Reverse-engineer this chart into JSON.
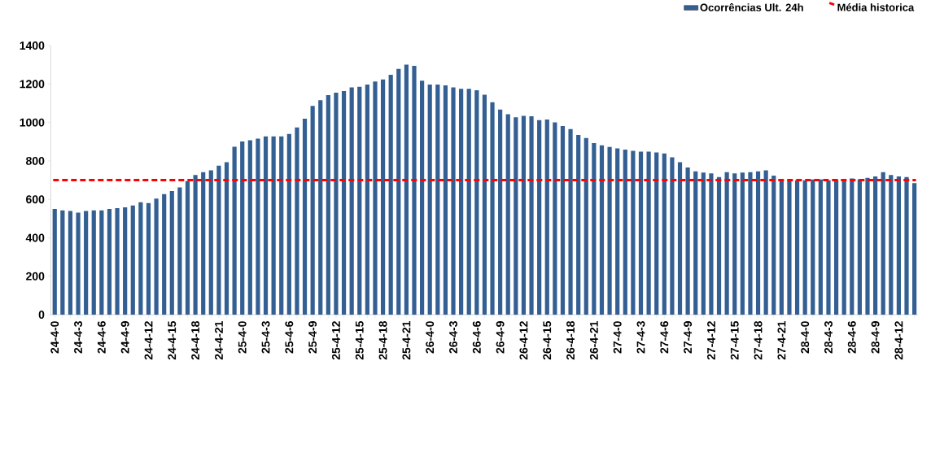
{
  "chart_data": {
    "type": "bar",
    "categories": [
      "24-4-0",
      null,
      null,
      "24-4-3",
      null,
      null,
      "24-4-6",
      null,
      null,
      "24-4-9",
      null,
      null,
      "24-4-12",
      null,
      null,
      "24-4-15",
      null,
      null,
      "24-4-18",
      null,
      null,
      "24-4-21",
      null,
      null,
      "25-4-0",
      null,
      null,
      "25-4-3",
      null,
      null,
      "25-4-6",
      null,
      null,
      "25-4-9",
      null,
      null,
      "25-4-12",
      null,
      null,
      "25-4-15",
      null,
      null,
      "25-4-18",
      null,
      null,
      "25-4-21",
      null,
      null,
      "26-4-0",
      null,
      null,
      "26-4-3",
      null,
      null,
      "26-4-6",
      null,
      null,
      "26-4-9",
      null,
      null,
      "26-4-12",
      null,
      null,
      "26-4-15",
      null,
      null,
      "26-4-18",
      null,
      null,
      "26-4-21",
      null,
      null,
      "27-4-0",
      null,
      null,
      "27-4-3",
      null,
      null,
      "27-4-6",
      null,
      null,
      "27-4-9",
      null,
      null,
      "27-4-12",
      null,
      null,
      "27-4-15",
      null,
      null,
      "27-4-18",
      null,
      null,
      "27-4-21",
      null,
      null,
      "28-4-0",
      null,
      null,
      "28-4-3",
      null,
      null,
      "28-4-6",
      null,
      null,
      "28-4-9",
      null,
      null,
      "28-4-12",
      null,
      null
    ],
    "series": [
      {
        "name": "Ocorrências Ult. 24h",
        "color": "#335f93",
        "values": [
          550,
          543,
          539,
          531,
          539,
          543,
          543,
          550,
          554,
          559,
          568,
          585,
          581,
          604,
          627,
          643,
          662,
          695,
          727,
          742,
          751,
          775,
          793,
          874,
          901,
          908,
          916,
          928,
          928,
          928,
          940,
          974,
          1020,
          1086,
          1116,
          1142,
          1155,
          1163,
          1182,
          1186,
          1197,
          1213,
          1224,
          1248,
          1279,
          1301,
          1294,
          1217,
          1197,
          1197,
          1193,
          1182,
          1175,
          1175,
          1168,
          1144,
          1105,
          1067,
          1043,
          1027,
          1034,
          1032,
          1012,
          1015,
          1001,
          981,
          966,
          935,
          919,
          893,
          881,
          873,
          865,
          859,
          852,
          848,
          848,
          844,
          839,
          819,
          793,
          766,
          746,
          739,
          735,
          716,
          742,
          735,
          739,
          742,
          746,
          751,
          723,
          699,
          703,
          699,
          699,
          703,
          703,
          699,
          703,
          703,
          709,
          703,
          712,
          719,
          742,
          727,
          719,
          716,
          684
        ]
      }
    ],
    "ref_lines": [
      {
        "axis": "y",
        "value": 700,
        "label": "Média historica",
        "color": "#ff0000",
        "line_style": "dashed"
      }
    ],
    "ylim": [
      0,
      1400
    ],
    "yticks": [
      0,
      200,
      400,
      600,
      800,
      1000,
      1200,
      1400
    ],
    "grid": false,
    "legend": "top right"
  }
}
